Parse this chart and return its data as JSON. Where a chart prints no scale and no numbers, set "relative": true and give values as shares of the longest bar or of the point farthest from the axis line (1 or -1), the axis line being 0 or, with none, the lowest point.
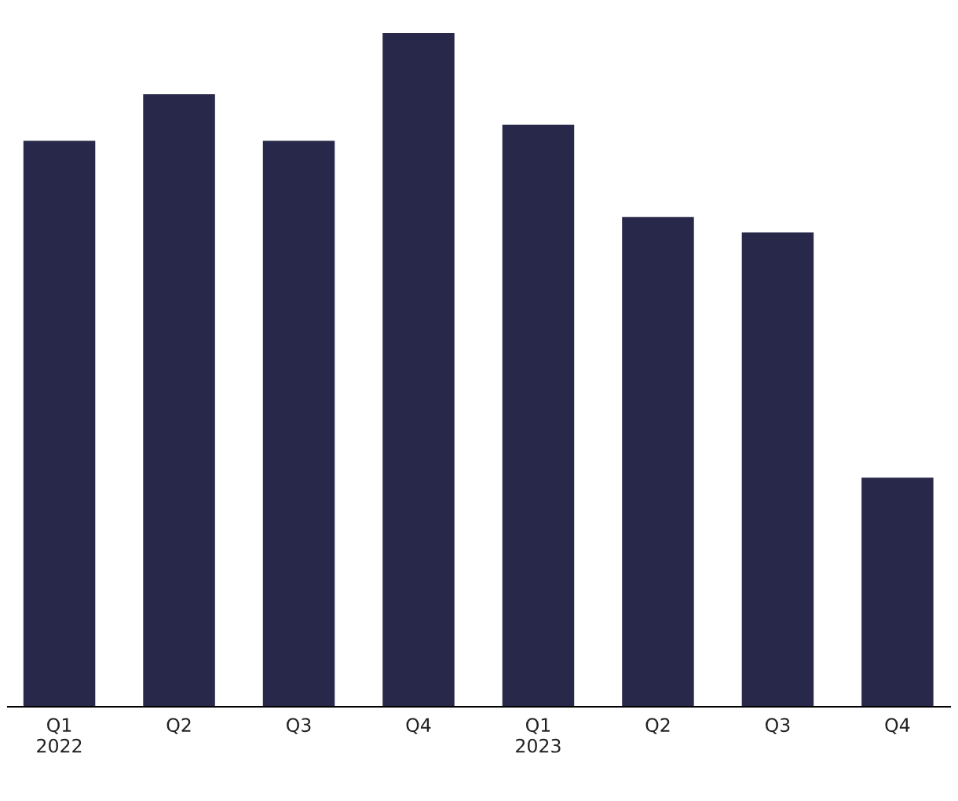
{
  "chart_data": {
    "type": "bar",
    "relative": true,
    "categories": [
      "Q1\n2022",
      "Q2",
      "Q3",
      "Q4",
      "Q1\n2023",
      "Q2",
      "Q3",
      "Q4"
    ],
    "values": [
      0.84,
      0.909,
      0.84,
      1,
      0.864,
      0.727,
      0.704,
      0.34
    ],
    "color": "#28284a",
    "grid": false,
    "legend": false
  }
}
